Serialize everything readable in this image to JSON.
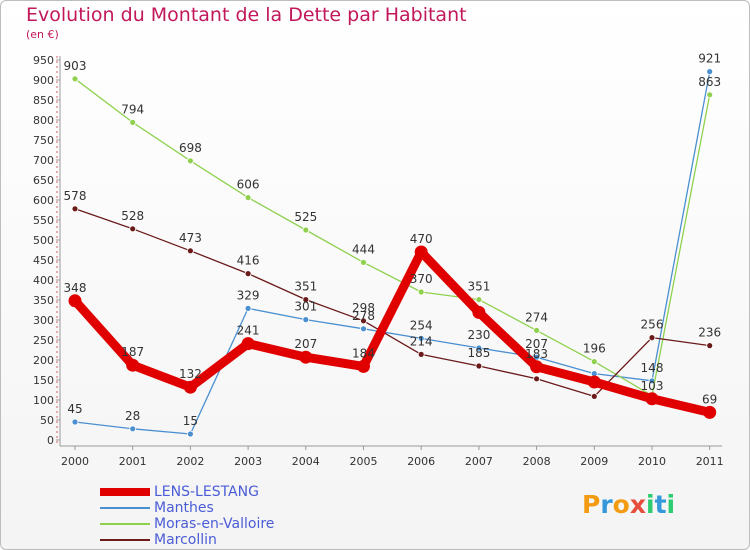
{
  "title": "Evolution du Montant de la Dette par Habitant",
  "subtitle": "(en €)",
  "logo": {
    "text": "Proxiti",
    "letters": [
      "P",
      "r",
      "o",
      "x",
      "i",
      "t",
      "i"
    ],
    "colors": [
      "#f39c12",
      "#3498db",
      "#f39c12",
      "#e74c3c",
      "#2ecc71",
      "#3498db",
      "#2ecc71"
    ]
  },
  "chart_data": {
    "type": "line",
    "title": "Evolution du Montant de la Dette par Habitant",
    "ylabel": "(en €)",
    "xlabel": "",
    "x": [
      "2000",
      "2001",
      "2002",
      "2003",
      "2004",
      "2005",
      "2006",
      "2007",
      "2008",
      "2009",
      "2010",
      "2011"
    ],
    "ylim": [
      0,
      950
    ],
    "yticks": [
      0,
      50,
      100,
      150,
      200,
      250,
      300,
      350,
      400,
      450,
      500,
      550,
      600,
      650,
      700,
      750,
      800,
      850,
      900,
      950
    ],
    "grid": false,
    "legend_position": "bottom-left",
    "series": [
      {
        "name": "LENS-LESTANG",
        "color": "#e00000",
        "values": [
          348,
          187,
          132,
          241,
          207,
          184,
          470,
          319,
          183,
          145,
          103,
          69
        ],
        "labels": [
          "348",
          "187",
          "132",
          "241",
          "207",
          "184",
          "470",
          "",
          "183",
          "",
          "103",
          "69"
        ]
      },
      {
        "name": "Manthes",
        "color": "#4a8fd0",
        "values": [
          45,
          28,
          15,
          329,
          301,
          278,
          254,
          230,
          207,
          166,
          148,
          921
        ],
        "labels": [
          "45",
          "28",
          "15",
          "329",
          "301",
          "278",
          "254",
          "230",
          "207",
          "",
          "148",
          "921"
        ]
      },
      {
        "name": "Moras-en-Valloire",
        "color": "#8fd14f",
        "values": [
          903,
          794,
          698,
          606,
          525,
          444,
          370,
          351,
          274,
          196,
          111,
          863
        ],
        "labels": [
          "903",
          "794",
          "698",
          "606",
          "525",
          "444",
          "370",
          "351",
          "274",
          "196",
          "",
          "863"
        ]
      },
      {
        "name": "Marcollin",
        "color": "#6b1a1a",
        "values": [
          578,
          528,
          473,
          416,
          351,
          298,
          214,
          185,
          153,
          109,
          256,
          236
        ],
        "labels": [
          "578",
          "528",
          "473",
          "416",
          "351",
          "298",
          "214",
          "185",
          "",
          "",
          "256",
          "236"
        ]
      }
    ]
  }
}
